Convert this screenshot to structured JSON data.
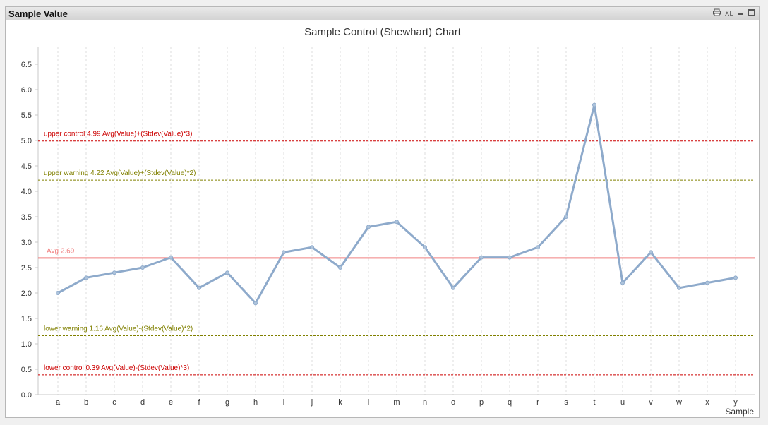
{
  "window": {
    "caption": "Sample Value",
    "icons": [
      "print-icon",
      "xl-export-icon",
      "minimize-icon",
      "maximize-icon"
    ],
    "xl_label": "XL"
  },
  "chart_data": {
    "type": "line",
    "title": "Sample Control (Shewhart) Chart",
    "xlabel": "Sample",
    "ylabel": "",
    "categories": [
      "a",
      "b",
      "c",
      "d",
      "e",
      "f",
      "g",
      "h",
      "i",
      "j",
      "k",
      "l",
      "m",
      "n",
      "o",
      "p",
      "q",
      "r",
      "s",
      "t",
      "u",
      "v",
      "w",
      "x",
      "y"
    ],
    "series": [
      {
        "values": [
          2.0,
          2.3,
          2.4,
          2.5,
          2.7,
          2.1,
          2.4,
          1.8,
          2.8,
          2.9,
          2.5,
          3.3,
          3.4,
          2.9,
          2.1,
          2.7,
          2.7,
          2.9,
          3.5,
          5.7,
          2.2,
          2.8,
          2.1,
          2.2,
          2.3
        ],
        "color": "#8eaacb"
      }
    ],
    "ylim": [
      0,
      6.8
    ],
    "yticks": [
      "0.0",
      "0.5",
      "1.0",
      "1.5",
      "2.0",
      "2.5",
      "3.0",
      "3.5",
      "4.0",
      "4.5",
      "5.0",
      "5.5",
      "6.0",
      "6.5"
    ],
    "reference_lines": [
      {
        "label": "upper control 4.99 Avg(Value)+(Stdev(Value)*3)",
        "value": 4.99,
        "color": "#cc0000",
        "style": "dashed"
      },
      {
        "label": "upper warning 4.22 Avg(Value)+(Stdev(Value)*2)",
        "value": 4.22,
        "color": "#808000",
        "style": "dashed"
      },
      {
        "label": "Avg 2.69",
        "value": 2.69,
        "color": "#f08080",
        "style": "solid"
      },
      {
        "label": "lower warning 1.16 Avg(Value)-(Stdev(Value)*2)",
        "value": 1.16,
        "color": "#808000",
        "style": "dashed"
      },
      {
        "label": "lower control 0.39 Avg(Value)-(Stdev(Value)*3)",
        "value": 0.39,
        "color": "#cc0000",
        "style": "dashed"
      }
    ],
    "grid": {
      "vertical": true,
      "horizontal": false
    },
    "legend": "none"
  }
}
